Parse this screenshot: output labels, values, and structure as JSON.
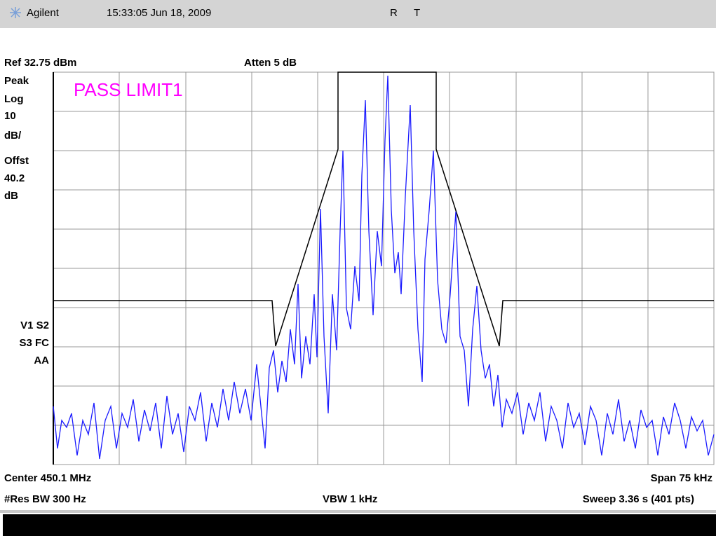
{
  "header": {
    "brand": "Agilent",
    "datetime": "15:33:05  Jun 18, 2009",
    "r": "R",
    "t": "T"
  },
  "top": {
    "ref": "Ref 32.75 dBm",
    "atten": "Atten 5 dB"
  },
  "left_labels": [
    "Peak",
    "Log",
    "10",
    "dB/",
    "Offst",
    "40.2",
    "dB"
  ],
  "status_labels": [
    "V1  S2",
    "S3  FC",
    "AA"
  ],
  "annotation": "PASS LIMIT1",
  "bottom": {
    "center": "Center 450.1 MHz",
    "span": "Span 75 kHz",
    "rbw": "#Res BW 300 Hz",
    "vbw": "VBW 1 kHz",
    "sweep": "Sweep 3.36 s (401 pts)"
  }
}
